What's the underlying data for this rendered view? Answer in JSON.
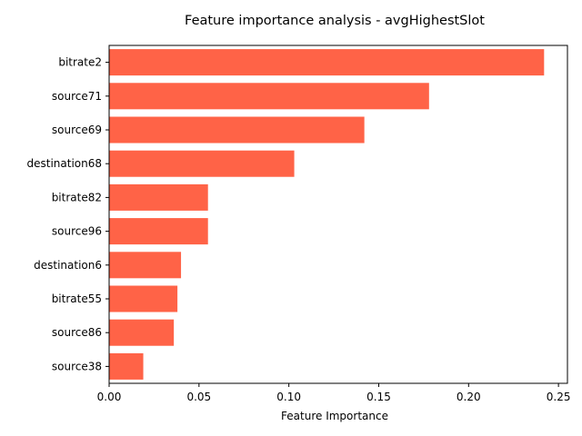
{
  "chart_data": {
    "type": "bar",
    "orientation": "horizontal",
    "title": "Feature importance analysis - avgHighestSlot",
    "xlabel": "Feature Importance",
    "ylabel": "",
    "categories": [
      "bitrate2",
      "source71",
      "source69",
      "destination68",
      "bitrate82",
      "source96",
      "destination6",
      "bitrate55",
      "source86",
      "source38"
    ],
    "values": [
      0.242,
      0.178,
      0.142,
      0.103,
      0.055,
      0.055,
      0.04,
      0.038,
      0.036,
      0.019
    ],
    "xlim": [
      0.0,
      0.255
    ],
    "xticks": [
      0.0,
      0.05,
      0.1,
      0.15,
      0.2,
      0.25
    ],
    "xtick_labels": [
      "0.00",
      "0.05",
      "0.10",
      "0.15",
      "0.20",
      "0.25"
    ],
    "bar_color": "#ff6347",
    "grid": false,
    "legend": "none"
  }
}
